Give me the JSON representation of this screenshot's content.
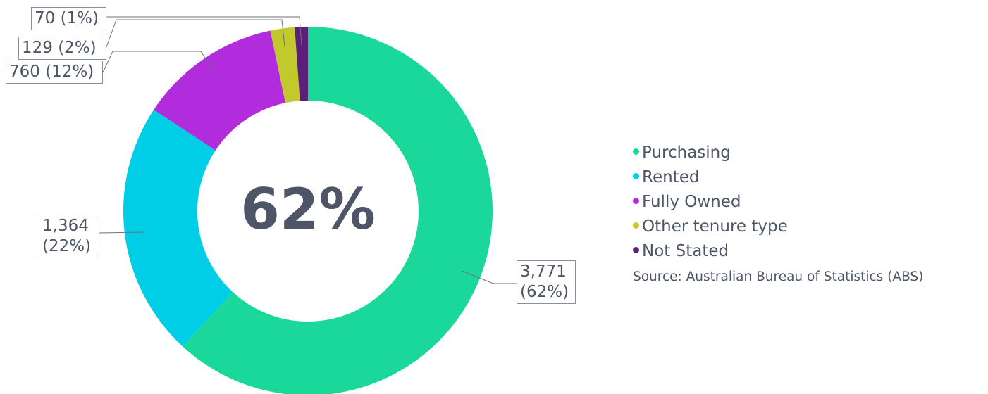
{
  "chart_data": {
    "type": "pie",
    "center_label": "62%",
    "categories": [
      "Purchasing",
      "Rented",
      "Fully Owned",
      "Other tenure type",
      "Not Stated"
    ],
    "values": [
      3771,
      1364,
      760,
      129,
      70
    ],
    "value_labels": [
      "3,771 (62%)",
      "1,364 (22%)",
      "760 (12%)",
      "129 (2%)",
      "70 (1%)"
    ],
    "colors": [
      "#19d89a",
      "#00cde6",
      "#b02cdd",
      "#c2c92c",
      "#5b1f7a"
    ],
    "source": "Source: Australian Bureau of Statistics (ABS)"
  }
}
